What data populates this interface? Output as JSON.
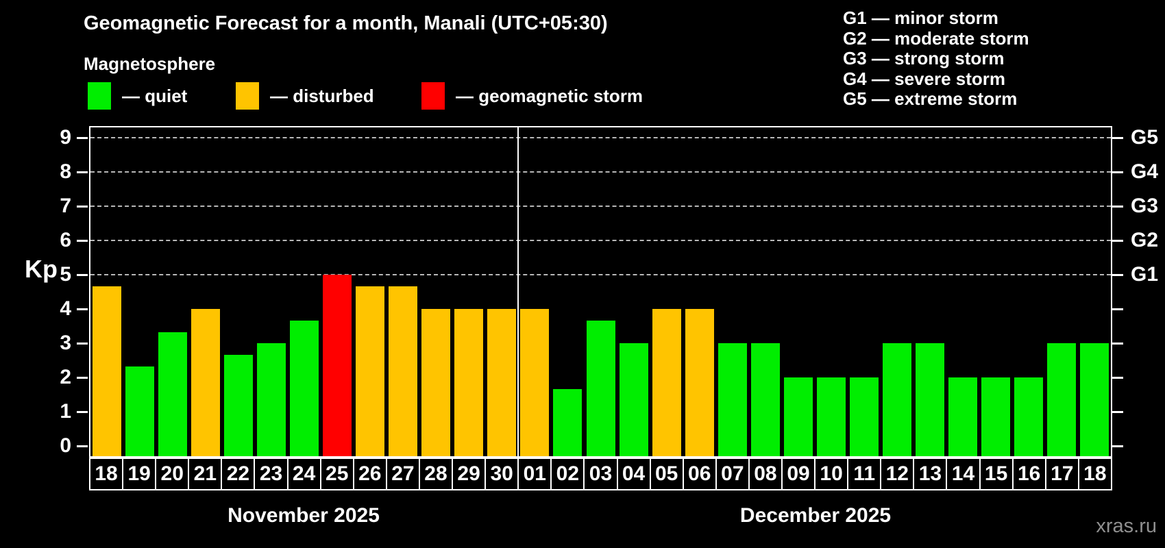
{
  "header": {
    "title": "Geomagnetic Forecast for a month, Manali (UTC+05:30)",
    "subtitle": "Magnetosphere"
  },
  "legend": {
    "items": [
      {
        "label": "— quiet",
        "state": "quiet"
      },
      {
        "label": "— disturbed",
        "state": "disturbed"
      },
      {
        "label": "— geomagnetic storm",
        "state": "storm"
      }
    ]
  },
  "storm_scale_legend": [
    "G1 — minor storm",
    "G2 — moderate storm",
    "G3 — strong storm",
    "G4 — severe storm",
    "G5 — extreme storm"
  ],
  "watermark": "xras.ru",
  "chart_data": {
    "type": "bar",
    "title": "Geomagnetic Forecast for a month, Manali (UTC+05:30)",
    "subtitle": "Magnetosphere",
    "ylabel": "Kp",
    "ylim": [
      0,
      9.3
    ],
    "yticks": [
      0,
      1,
      2,
      3,
      4,
      5,
      6,
      7,
      8,
      9
    ],
    "grid": "horizontal dashed lines at Kp 5-9 only",
    "grid_levels": [
      5,
      6,
      7,
      8,
      9
    ],
    "right_axis_labels": [
      {
        "kp": 5,
        "label": "G1"
      },
      {
        "kp": 6,
        "label": "G2"
      },
      {
        "kp": 7,
        "label": "G3"
      },
      {
        "kp": 8,
        "label": "G4"
      },
      {
        "kp": 9,
        "label": "G5"
      }
    ],
    "state_colors": {
      "quiet": "#00ee00",
      "disturbed": "#ffc400",
      "storm": "#ff0000"
    },
    "background_color": "#000000",
    "legend_position": "top-left and top-right",
    "months": [
      {
        "label": "November 2025",
        "days": [
          {
            "day": "18",
            "kp": 4.67,
            "state": "disturbed"
          },
          {
            "day": "19",
            "kp": 2.33,
            "state": "quiet"
          },
          {
            "day": "20",
            "kp": 3.33,
            "state": "quiet"
          },
          {
            "day": "21",
            "kp": 4.0,
            "state": "disturbed"
          },
          {
            "day": "22",
            "kp": 2.67,
            "state": "quiet"
          },
          {
            "day": "23",
            "kp": 3.0,
            "state": "quiet"
          },
          {
            "day": "24",
            "kp": 3.67,
            "state": "quiet"
          },
          {
            "day": "25",
            "kp": 5.0,
            "state": "storm"
          },
          {
            "day": "26",
            "kp": 4.67,
            "state": "disturbed"
          },
          {
            "day": "27",
            "kp": 4.67,
            "state": "disturbed"
          },
          {
            "day": "28",
            "kp": 4.0,
            "state": "disturbed"
          },
          {
            "day": "29",
            "kp": 4.0,
            "state": "disturbed"
          },
          {
            "day": "30",
            "kp": 4.0,
            "state": "disturbed"
          }
        ]
      },
      {
        "label": "December 2025",
        "days": [
          {
            "day": "01",
            "kp": 4.0,
            "state": "disturbed"
          },
          {
            "day": "02",
            "kp": 1.67,
            "state": "quiet"
          },
          {
            "day": "03",
            "kp": 3.67,
            "state": "quiet"
          },
          {
            "day": "04",
            "kp": 3.0,
            "state": "quiet"
          },
          {
            "day": "05",
            "kp": 4.0,
            "state": "disturbed"
          },
          {
            "day": "06",
            "kp": 4.0,
            "state": "disturbed"
          },
          {
            "day": "07",
            "kp": 3.0,
            "state": "quiet"
          },
          {
            "day": "08",
            "kp": 3.0,
            "state": "quiet"
          },
          {
            "day": "09",
            "kp": 2.0,
            "state": "quiet"
          },
          {
            "day": "10",
            "kp": 2.0,
            "state": "quiet"
          },
          {
            "day": "11",
            "kp": 2.0,
            "state": "quiet"
          },
          {
            "day": "12",
            "kp": 3.0,
            "state": "quiet"
          },
          {
            "day": "13",
            "kp": 3.0,
            "state": "quiet"
          },
          {
            "day": "14",
            "kp": 2.0,
            "state": "quiet"
          },
          {
            "day": "15",
            "kp": 2.0,
            "state": "quiet"
          },
          {
            "day": "16",
            "kp": 2.0,
            "state": "quiet"
          },
          {
            "day": "17",
            "kp": 3.0,
            "state": "quiet"
          },
          {
            "day": "18",
            "kp": 3.0,
            "state": "quiet"
          }
        ]
      }
    ]
  }
}
